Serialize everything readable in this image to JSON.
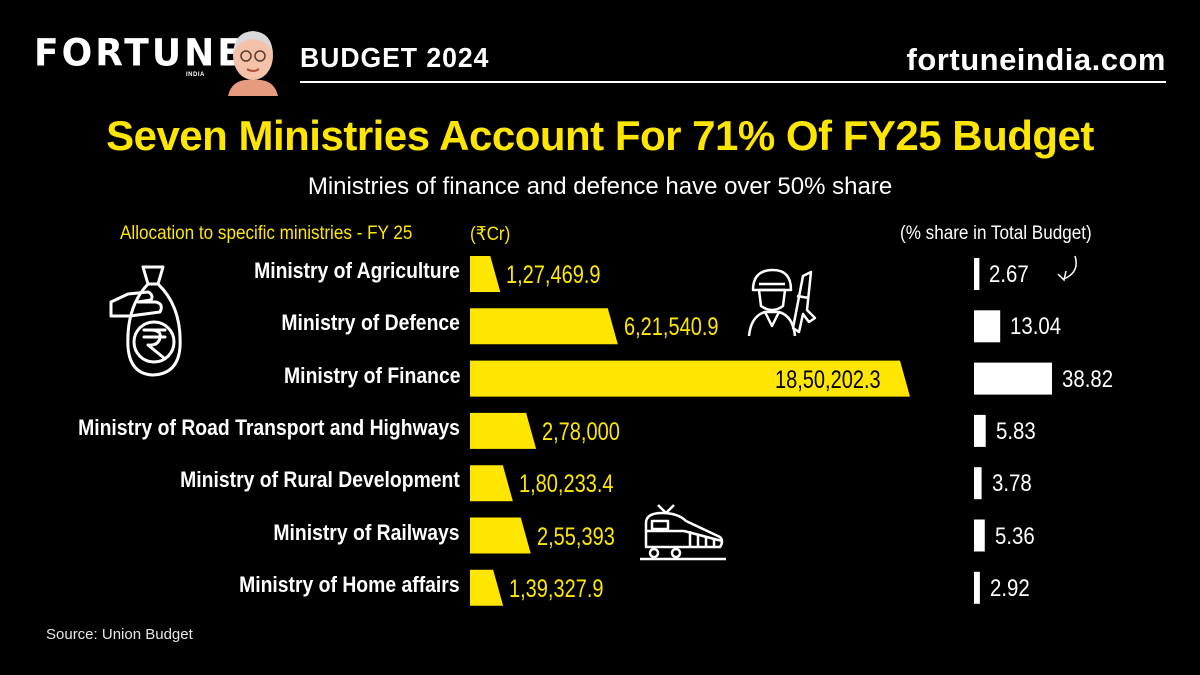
{
  "header": {
    "logo": "FORTUNE",
    "logo_sub": "INDIA",
    "budget_label": "BUDGET 2024",
    "site": "fortuneindia.com"
  },
  "headline": "Seven Ministries Account For 71% Of FY25 Budget",
  "subtitle": "Ministries of finance and defence have over 50% share",
  "source": "Source: Union Budget",
  "colors": {
    "accent": "#ffe600",
    "background": "#000000",
    "text": "#ffffff"
  },
  "chart_data": {
    "type": "bar",
    "title": "Allocation to specific ministries - FY 25",
    "unit_label": "(₹Cr)",
    "share_title": "(% share in Total Budget)",
    "categories": [
      "Ministry of Agriculture",
      "Ministry of Defence",
      "Ministry of Finance",
      "Ministry of Road Transport and Highways",
      "Ministry of Rural Development",
      "Ministry of Railways",
      "Ministry of Home affairs"
    ],
    "series": [
      {
        "name": "Allocation (₹Cr)",
        "values": [
          127469.9,
          621540.9,
          1850202.3,
          278000,
          180233.4,
          255393,
          139327.9
        ],
        "labels": [
          "1,27,469.9",
          "6,21,540.9",
          "18,50,202.3",
          "2,78,000",
          "1,80,233.4",
          "2,55,393",
          "1,39,327.9"
        ]
      },
      {
        "name": "% share in Total Budget",
        "values": [
          2.67,
          13.04,
          38.82,
          5.83,
          3.78,
          5.36,
          2.92
        ],
        "labels": [
          "2.67",
          "13.04",
          "38.82",
          "5.83",
          "3.78",
          "5.36",
          "2.92"
        ]
      }
    ]
  }
}
